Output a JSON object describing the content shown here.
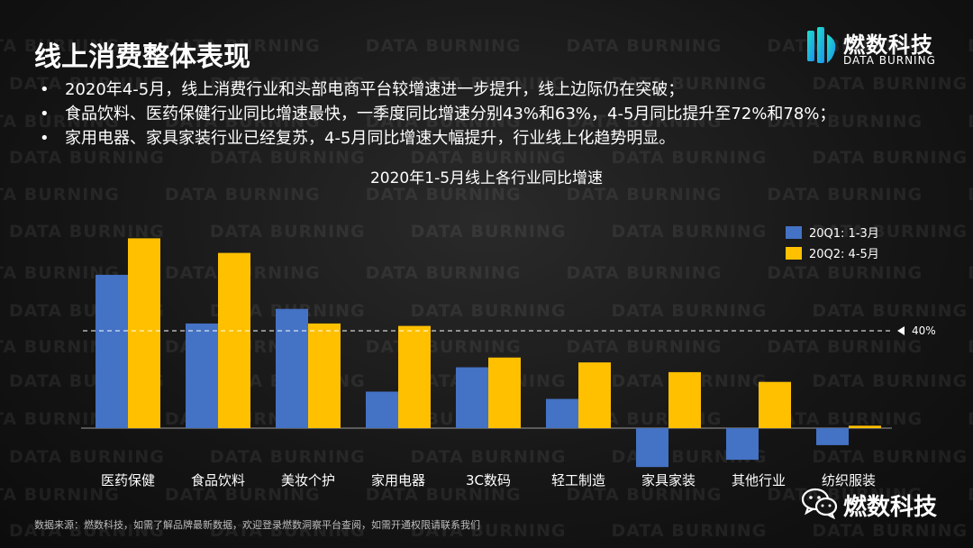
{
  "page": {
    "title": "线上消费整体表现",
    "bullets": [
      "2020年4-5月，线上消费行业和头部电商平台较增速进一步提升，线上边际仍在突破；",
      "食品饮料、医药保健行业同比增速最快，一季度同比增速分别43%和63%，4-5月同比提升至72%和78%；",
      "家用电器、家具家装行业已经复苏，4-5月同比增速大幅提升，行业线上化趋势明显。"
    ],
    "footnote": "数据来源：燃数科技，如需了解品牌最新数据，欢迎登录燃数洞察平台查阅，如需开通权限请联系我们"
  },
  "logo": {
    "name_cn": "燃数科技",
    "name_en": "DATA BURNING"
  },
  "wechat": {
    "label": "燃数科技"
  },
  "watermark": {
    "text": "DATA BURNING"
  },
  "colors": {
    "series1": "#4472C4",
    "series2": "#FFC000",
    "reference": "#ffffff"
  },
  "chart_data": {
    "type": "bar",
    "title": "2020年1-5月线上各行业同比增速",
    "categories": [
      "医药保健",
      "食品饮料",
      "美妆个护",
      "家用电器",
      "3C数码",
      "轻工制造",
      "家具家装",
      "其他行业",
      "纺织服装"
    ],
    "series": [
      {
        "name": "20Q1: 1-3月",
        "values": [
          63,
          43,
          49,
          15,
          25,
          12,
          -16,
          -13,
          -7
        ]
      },
      {
        "name": "20Q2: 4-5月",
        "values": [
          78,
          72,
          43,
          42,
          29,
          27,
          23,
          19,
          1
        ]
      }
    ],
    "reference_line": {
      "value": 40,
      "label": "40%"
    },
    "ylim": [
      -18,
      80
    ],
    "grid": false,
    "legend_position": "top-right"
  }
}
